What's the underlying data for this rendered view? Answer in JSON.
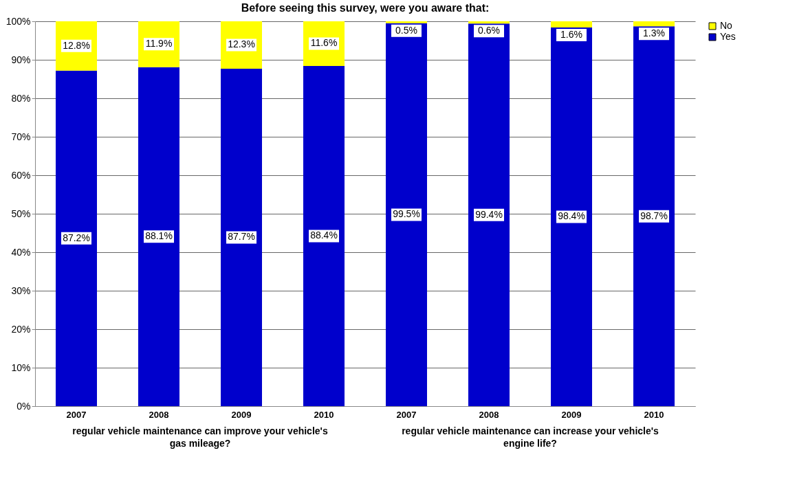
{
  "chart_data": {
    "type": "bar",
    "title": "Before seeing this survey, were you aware that:",
    "stacked": true,
    "categories": [
      "2007",
      "2008",
      "2009",
      "2010",
      "2007",
      "2008",
      "2009",
      "2010"
    ],
    "series": [
      {
        "name": "Yes",
        "color": "#0000cc",
        "values": [
          87.2,
          88.1,
          87.7,
          88.4,
          99.5,
          99.4,
          98.4,
          98.7
        ],
        "value_labels": [
          "87.2%",
          "88.1%",
          "87.7%",
          "88.4%",
          "99.5%",
          "99.4%",
          "98.4%",
          "98.7%"
        ]
      },
      {
        "name": "No",
        "color": "#ffff00",
        "values": [
          12.8,
          11.9,
          12.3,
          11.6,
          0.5,
          0.6,
          1.6,
          1.3
        ],
        "value_labels": [
          "12.8%",
          "11.9%",
          "12.3%",
          "11.6%",
          "0.5%",
          "0.6%",
          "1.6%",
          "1.3%"
        ]
      }
    ],
    "ylim": [
      0,
      100
    ],
    "yticks": [
      {
        "value": 0,
        "label": "0%"
      },
      {
        "value": 10,
        "label": "10%"
      },
      {
        "value": 20,
        "label": "20%"
      },
      {
        "value": 30,
        "label": "30%"
      },
      {
        "value": 40,
        "label": "40%"
      },
      {
        "value": 50,
        "label": "50%"
      },
      {
        "value": 60,
        "label": "60%"
      },
      {
        "value": 70,
        "label": "70%"
      },
      {
        "value": 80,
        "label": "80%"
      },
      {
        "value": 90,
        "label": "90%"
      },
      {
        "value": 100,
        "label": "100%"
      }
    ],
    "grid": "y",
    "legend": "right",
    "annotations": [
      "regular vehicle maintenance can improve your vehicle's gas mileage?",
      "regular vehicle maintenance can increase your vehicle's engine life?"
    ]
  }
}
